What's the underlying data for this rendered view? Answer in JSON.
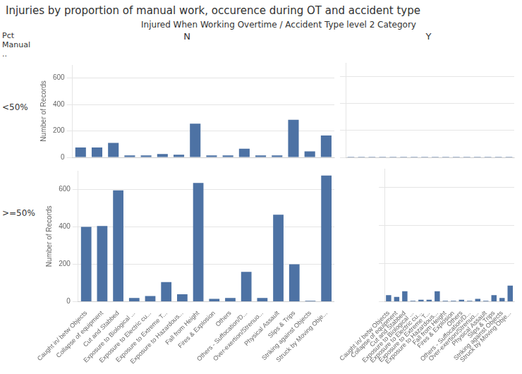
{
  "chart_data": {
    "type": "bar",
    "title": "Injuries by proportion of manual work, occurence during OT and accident type",
    "subtitle": "Injured When Working Overtime / Accident Type level 2 Category",
    "annotations": [
      "Pct Manual .."
    ],
    "ylabel": "Number of Records",
    "rows": [
      "<50%",
      ">=50%"
    ],
    "columns": [
      "N",
      "Y"
    ],
    "categories": [
      "Caught in/ betw Objects",
      "Collapse of equipment",
      "Cut and Stabbed",
      "Exposure to Biological ...",
      "Exposure to Electric cu...",
      "Exposure to Extreme T...",
      "Exposure to Hazardous...",
      "Fall from Height",
      "Fires & Explosion",
      "Others",
      "Others - Suffocation/D...",
      "Over-exertion/Strenuo...",
      "Physical Assault",
      "Slips & Trips",
      "Striking against Objects",
      "Struck by Moving Obje..."
    ],
    "values": [
      [
        [
          75,
          75,
          110,
          15,
          15,
          25,
          20,
          255,
          15,
          15,
          65,
          15,
          15,
          285,
          45,
          165
        ],
        [
          5,
          5,
          5,
          5,
          5,
          5,
          5,
          5,
          5,
          5,
          5,
          5,
          5,
          5,
          5,
          5
        ]
      ],
      [
        [
          400,
          405,
          595,
          20,
          30,
          105,
          40,
          635,
          15,
          20,
          160,
          20,
          465,
          200,
          5,
          675
        ],
        [
          35,
          25,
          55,
          5,
          10,
          10,
          55,
          5,
          5,
          10,
          5,
          15,
          5,
          35,
          20,
          85
        ]
      ]
    ],
    "color": "#4D72A4",
    "ylim": [
      0,
      700
    ],
    "yticks": [
      0,
      200,
      400,
      600
    ],
    "grid": true
  }
}
